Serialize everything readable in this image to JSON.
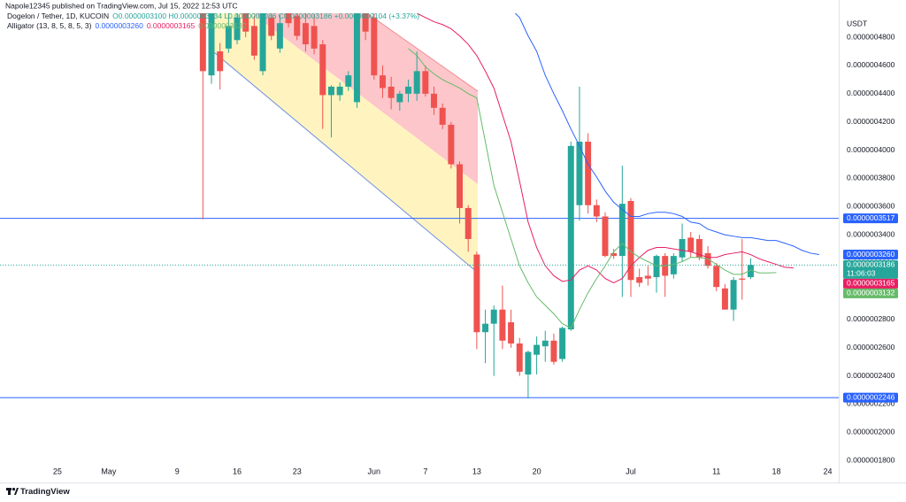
{
  "chart_data": {
    "type": "candlestick",
    "title": "Napole12345 published on TradingView.com, Jul 15, 2022 12:53 UTC",
    "symbol": "Dogelon / Tether, 1D, KUCOIN",
    "ohlc": "O0.0000003100 H0.0000003234 L0.0000003086 C0.0000003186 +0.0000000104 (+3.37%)",
    "y_axis_label": "USDT",
    "footer": "TradingView",
    "up_color": "#26a69a",
    "down_color": "#ef5350",
    "grid": false,
    "ylim": [
      1.77e-07,
      4.97e-07
    ],
    "yticks": [
      {
        "value": 1.8e-07,
        "label": "0.0000001800"
      },
      {
        "value": 2e-07,
        "label": "0.0000002000"
      },
      {
        "value": 2.2e-07,
        "label": "0.0000002200"
      },
      {
        "value": 2.4e-07,
        "label": "0.0000002400"
      },
      {
        "value": 2.6e-07,
        "label": "0.0000002600"
      },
      {
        "value": 2.8e-07,
        "label": "0.0000002800"
      },
      {
        "value": 3e-07,
        "label": "0.0000003000"
      },
      {
        "value": 3.2e-07,
        "label": "0.0000003200"
      },
      {
        "value": 3.4e-07,
        "label": "0.0000003400"
      },
      {
        "value": 3.6e-07,
        "label": "0.0000003600"
      },
      {
        "value": 3.8e-07,
        "label": "0.0000003800"
      },
      {
        "value": 4e-07,
        "label": "0.0000004000"
      },
      {
        "value": 4.2e-07,
        "label": "0.0000004200"
      },
      {
        "value": 4.4e-07,
        "label": "0.0000004400"
      },
      {
        "value": 4.6e-07,
        "label": "0.0000004600"
      },
      {
        "value": 4.8e-07,
        "label": "0.0000004800"
      }
    ],
    "categories": [
      null,
      null,
      null,
      null,
      null,
      null,
      "25",
      null,
      null,
      null,
      null,
      null,
      "May",
      null,
      null,
      null,
      null,
      null,
      null,
      null,
      "9",
      null,
      null,
      null,
      null,
      null,
      null,
      "16",
      null,
      null,
      null,
      null,
      null,
      null,
      "23",
      null,
      null,
      null,
      null,
      null,
      null,
      null,
      null,
      "Jun",
      null,
      null,
      null,
      null,
      null,
      "7",
      null,
      null,
      null,
      null,
      null,
      "13",
      null,
      null,
      null,
      null,
      null,
      null,
      "20",
      null,
      null,
      null,
      null,
      null,
      null,
      null,
      null,
      null,
      null,
      "Jul",
      null,
      null,
      null,
      null,
      null,
      null,
      null,
      null,
      null,
      "11",
      null,
      null,
      null,
      null,
      null,
      null,
      "18",
      null,
      null,
      null,
      null,
      null,
      "24",
      null
    ],
    "open": [
      null,
      null,
      null,
      null,
      null,
      null,
      null,
      null,
      null,
      null,
      null,
      null,
      null,
      null,
      null,
      null,
      null,
      null,
      null,
      null,
      null,
      null,
      null,
      5.05e-07,
      4.53e-07,
      4.7e-07,
      4.72e-07,
      4.78e-07,
      4.97e-07,
      4.88e-07,
      4.56e-07,
      4.94e-07,
      4.72e-07,
      4.97e-07,
      4.95e-07,
      4.9e-07,
      4.88e-07,
      4.75e-07,
      4.39e-07,
      4.39e-07,
      4.45e-07,
      4.34e-07,
      4.97e-07,
      4.94e-07,
      4.53e-07,
      4.45e-07,
      4.34e-07,
      4.4e-07,
      4.4e-07,
      4.56e-07,
      4.4e-07,
      4.3e-07,
      4.18e-07,
      3.9e-07,
      3.59e-07,
      3.26e-07,
      2.71e-07,
      2.77e-07,
      2.87e-07,
      2.78e-07,
      2.63e-07,
      2.41e-07,
      2.55e-07,
      2.61e-07,
      2.65e-07,
      2.52e-07,
      2.73e-07,
      3.61e-07,
      4.06e-07,
      3.61e-07,
      3.53e-07,
      3.27e-07,
      3.25e-07,
      3.64e-07,
      3.1e-07,
      3.11e-07,
      3.1e-07,
      3.25e-07,
      3.12e-07,
      3.24e-07,
      3.38e-07,
      3.37e-07,
      3.27e-07,
      3.18e-07,
      3.02e-07,
      2.87e-07,
      3.09e-07,
      3.1e-07,
      null,
      null,
      null,
      null,
      null,
      null,
      null,
      null,
      null,
      null
    ],
    "high": [
      null,
      null,
      null,
      null,
      null,
      null,
      null,
      null,
      null,
      null,
      null,
      null,
      null,
      null,
      null,
      null,
      null,
      null,
      null,
      null,
      null,
      null,
      null,
      5.1e-07,
      5.1e-07,
      4.76e-07,
      4.99e-07,
      5.05e-07,
      5.02e-07,
      4.95e-07,
      5.05e-07,
      5e-07,
      4.96e-07,
      5.03e-07,
      5.05e-07,
      4.98e-07,
      4.96e-07,
      4.78e-07,
      4.46e-07,
      4.48e-07,
      4.56e-07,
      5.1e-07,
      5.05e-07,
      5e-07,
      4.6e-07,
      4.52e-07,
      4.42e-07,
      4.5e-07,
      4.7e-07,
      4.6e-07,
      4.45e-07,
      4.33e-07,
      4.2e-07,
      3.92e-07,
      3.61e-07,
      3.28e-07,
      2.87e-07,
      2.9e-07,
      3.04e-07,
      2.87e-07,
      2.67e-07,
      2.58e-07,
      2.68e-07,
      2.72e-07,
      2.7e-07,
      2.75e-07,
      4.06e-07,
      4.45e-07,
      4.12e-07,
      3.65e-07,
      3.56e-07,
      3.3e-07,
      3.89e-07,
      3.66e-07,
      3.16e-07,
      3.18e-07,
      3.26e-07,
      3.27e-07,
      3.27e-07,
      3.48e-07,
      3.42e-07,
      3.4e-07,
      3.32e-07,
      3.2e-07,
      3.05e-07,
      3.1e-07,
      3.37e-07,
      3.234e-07,
      null,
      null,
      null,
      null,
      null,
      null,
      null,
      null,
      null,
      null
    ],
    "low": [
      null,
      null,
      null,
      null,
      null,
      null,
      null,
      null,
      null,
      null,
      null,
      null,
      null,
      null,
      null,
      null,
      null,
      null,
      null,
      null,
      null,
      null,
      null,
      3.51e-07,
      4.47e-07,
      4.43e-07,
      4.69e-07,
      4.75e-07,
      4.8e-07,
      4.64e-07,
      4.53e-07,
      4.78e-07,
      4.69e-07,
      4.87e-07,
      4.78e-07,
      4.7e-07,
      4.68e-07,
      4.15e-07,
      4.09e-07,
      4.35e-07,
      4.42e-07,
      4.3e-07,
      4.78e-07,
      4.5e-07,
      4.37e-07,
      4.29e-07,
      4.28e-07,
      4.34e-07,
      4.35e-07,
      4.38e-07,
      4.25e-07,
      4.15e-07,
      3.87e-07,
      3.48e-07,
      3.28e-07,
      2.59e-07,
      2.49e-07,
      2.4e-07,
      2.59e-07,
      2.6e-07,
      2.4e-07,
      2.24e-07,
      2.41e-07,
      2.5e-07,
      2.48e-07,
      2.5e-07,
      2.72e-07,
      3.5e-07,
      3.55e-07,
      3.49e-07,
      3.24e-07,
      3.23e-07,
      2.96e-07,
      2.96e-07,
      3.03e-07,
      3.04e-07,
      2.99e-07,
      2.96e-07,
      3.09e-07,
      3.21e-07,
      3.24e-07,
      3.22e-07,
      3.16e-07,
      3e-07,
      2.87e-07,
      2.79e-07,
      2.94e-07,
      3.086e-07,
      null,
      null,
      null,
      null,
      null,
      null,
      null,
      null,
      null,
      null
    ],
    "close": [
      null,
      null,
      null,
      null,
      null,
      null,
      null,
      null,
      null,
      null,
      null,
      null,
      null,
      null,
      null,
      null,
      null,
      null,
      null,
      null,
      null,
      null,
      null,
      4.56e-07,
      5e-07,
      4.56e-07,
      4.88e-07,
      4.94e-07,
      4.84e-07,
      4.67e-07,
      4.97e-07,
      4.81e-07,
      4.9e-07,
      4.9e-07,
      4.81e-07,
      4.75e-07,
      4.72e-07,
      4.39e-07,
      4.45e-07,
      4.45e-07,
      4.53e-07,
      5e-07,
      4.84e-07,
      4.53e-07,
      4.44e-07,
      4.37e-07,
      4.4e-07,
      4.45e-07,
      4.56e-07,
      4.4e-07,
      4.3e-07,
      4.18e-07,
      3.9e-07,
      3.59e-07,
      3.37e-07,
      2.71e-07,
      2.77e-07,
      2.87e-07,
      2.65e-07,
      2.63e-07,
      2.43e-07,
      2.57e-07,
      2.62e-07,
      2.65e-07,
      2.5e-07,
      2.74e-07,
      4.03e-07,
      4.06e-07,
      3.61e-07,
      3.53e-07,
      3.25e-07,
      3.25e-07,
      3.62e-07,
      3.08e-07,
      3.06e-07,
      3.09e-07,
      3.25e-07,
      3.11e-07,
      3.25e-07,
      3.37e-07,
      3.28e-07,
      3.24e-07,
      3.18e-07,
      3.03e-07,
      2.87e-07,
      3.08e-07,
      3.082e-07,
      3.186e-07,
      null,
      null,
      null,
      null,
      null,
      null,
      null,
      null,
      null,
      null
    ],
    "indicator": {
      "label": "Alligator (13, 8, 5, 8, 5, 3)",
      "series": [
        {
          "color": "#2962ff",
          "value_label": "0.0000003260",
          "values": [
            null,
            null,
            null,
            null,
            null,
            null,
            null,
            null,
            null,
            null,
            null,
            null,
            null,
            null,
            null,
            null,
            null,
            null,
            null,
            null,
            null,
            null,
            null,
            null,
            null,
            null,
            null,
            null,
            null,
            null,
            null,
            null,
            null,
            null,
            null,
            null,
            null,
            null,
            null,
            null,
            null,
            null,
            null,
            null,
            null,
            null,
            null,
            null,
            null,
            null,
            null,
            null,
            null,
            null,
            null,
            null,
            null,
            null,
            null,
            5e-07,
            4.94e-07,
            4.81e-07,
            4.7e-07,
            4.53e-07,
            4.4e-07,
            4.28e-07,
            4.15e-07,
            4.03e-07,
            3.9e-07,
            3.81e-07,
            3.71e-07,
            3.63e-07,
            3.58e-07,
            3.53e-07,
            3.53e-07,
            3.55e-07,
            3.56e-07,
            3.56e-07,
            3.55e-07,
            3.53e-07,
            3.49e-07,
            3.48e-07,
            3.44e-07,
            3.42e-07,
            3.4e-07,
            3.39e-07,
            3.38e-07,
            3.38e-07,
            3.37e-07,
            3.36e-07,
            3.36e-07,
            3.34e-07,
            3.32e-07,
            3.29e-07,
            3.27e-07,
            3.26e-07,
            null,
            null
          ]
        },
        {
          "color": "#e91e63",
          "value_label": "0.0000003165",
          "values": [
            null,
            null,
            null,
            null,
            null,
            null,
            null,
            null,
            null,
            null,
            null,
            null,
            null,
            null,
            null,
            null,
            null,
            null,
            null,
            null,
            null,
            null,
            null,
            null,
            null,
            null,
            null,
            null,
            null,
            null,
            null,
            null,
            null,
            null,
            null,
            null,
            null,
            null,
            null,
            null,
            null,
            null,
            null,
            null,
            null,
            null,
            null,
            null,
            4.97e-07,
            4.94e-07,
            4.91e-07,
            4.89e-07,
            4.86e-07,
            4.81e-07,
            4.75e-07,
            4.67e-07,
            4.56e-07,
            4.44e-07,
            4.25e-07,
            4.06e-07,
            3.78e-07,
            3.49e-07,
            3.31e-07,
            3.18e-07,
            3.11e-07,
            3.07e-07,
            3.08e-07,
            3.15e-07,
            3.18e-07,
            3.15e-07,
            3.09e-07,
            3.06e-07,
            3.09e-07,
            3.18e-07,
            3.24e-07,
            3.29e-07,
            3.31e-07,
            3.31e-07,
            3.3e-07,
            3.29e-07,
            3.28e-07,
            3.26e-07,
            3.24e-07,
            3.24e-07,
            3.26e-07,
            3.27e-07,
            3.28e-07,
            3.26e-07,
            3.23e-07,
            3.21e-07,
            3.19e-07,
            3.17e-07,
            3.165e-07,
            null,
            null,
            null,
            null,
            null
          ]
        },
        {
          "color": "#66bb6a",
          "value_label": "0.0000003132",
          "values": [
            null,
            null,
            null,
            null,
            null,
            null,
            null,
            null,
            null,
            null,
            null,
            null,
            null,
            null,
            null,
            null,
            null,
            null,
            null,
            null,
            null,
            null,
            null,
            null,
            null,
            null,
            null,
            null,
            null,
            null,
            null,
            null,
            null,
            null,
            null,
            null,
            null,
            null,
            null,
            null,
            null,
            null,
            null,
            null,
            null,
            null,
            null,
            4.72e-07,
            4.67e-07,
            4.59e-07,
            4.54e-07,
            4.5e-07,
            4.47e-07,
            4.44e-07,
            4.4e-07,
            4.37e-07,
            4.06e-07,
            3.75e-07,
            3.56e-07,
            3.37e-07,
            3.18e-07,
            3.06e-07,
            2.96e-07,
            2.9e-07,
            2.84e-07,
            2.77e-07,
            2.74e-07,
            2.87e-07,
            2.99e-07,
            3.09e-07,
            3.18e-07,
            3.28e-07,
            3.34e-07,
            3.28e-07,
            3.24e-07,
            3.21e-07,
            3.18e-07,
            3.18e-07,
            3.19e-07,
            3.21e-07,
            3.24e-07,
            3.24e-07,
            3.23e-07,
            3.19e-07,
            3.15e-07,
            3.12e-07,
            3.12e-07,
            3.15e-07,
            3.13e-07,
            3.13e-07,
            3.132e-07,
            null,
            null,
            null,
            null,
            null,
            null,
            null
          ]
        }
      ]
    },
    "price": {
      "value": 3.186e-07,
      "label": "0.0000003186",
      "countdown": "11:06:03",
      "color": "#26a69a"
    },
    "hlines": [
      {
        "value": 3.517e-07,
        "label": "0.0000003517",
        "color": "#2962ff"
      },
      {
        "value": 2.246e-07,
        "label": "0.0000002246",
        "color": "#2962ff"
      }
    ]
  }
}
